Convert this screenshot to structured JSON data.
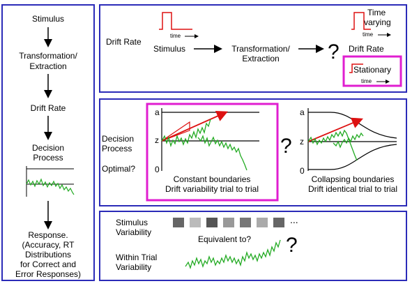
{
  "flow": {
    "stimulus": "Stimulus",
    "transformation": [
      "Transformation/",
      "Extraction"
    ],
    "drift_rate": "Drift Rate",
    "decision_process": [
      "Decision",
      "Process"
    ],
    "response": [
      "Response.",
      "(Accuracy, RT",
      "Distributions",
      "for Correct and",
      "Error Responses)"
    ]
  },
  "top": {
    "drift_rate_label": "Drift Rate",
    "time_label": "time",
    "stimulus": "Stimulus",
    "transformation": [
      "Transformation/",
      "Extraction"
    ],
    "question": "?",
    "time_varying": [
      "Time",
      "varying"
    ],
    "time_label_right": "time",
    "drift_rate_right": "Drift Rate",
    "stationary": "Stationary",
    "time_label_stationary": "time"
  },
  "mid": {
    "decision_process": [
      "Decision",
      "Process"
    ],
    "optimal": "Optimal?",
    "axis_a": "a",
    "axis_z": "z",
    "axis_0": "0",
    "left_caption": [
      "Constant boundaries",
      "Drift variability trial to trial"
    ],
    "question": "?",
    "right_caption": [
      "Collapsing boundaries",
      "Drift identical trial to trial"
    ]
  },
  "bottom": {
    "stimulus_variability": [
      "Stimulus",
      "Variability"
    ],
    "ellipsis": "...",
    "equivalent": "Equivalent to?",
    "question": "?",
    "within_trial": [
      "Within Trial",
      "Variability"
    ],
    "swatch_colors": [
      "#666666",
      "#bbbbbb",
      "#555555",
      "#999999",
      "#777777",
      "#aaaaaa",
      "#666666"
    ]
  },
  "colors": {
    "frame": "#2b2bb8",
    "highlight": "#e01ed0",
    "signal": "#dd1111",
    "trace": "#22aa22"
  }
}
